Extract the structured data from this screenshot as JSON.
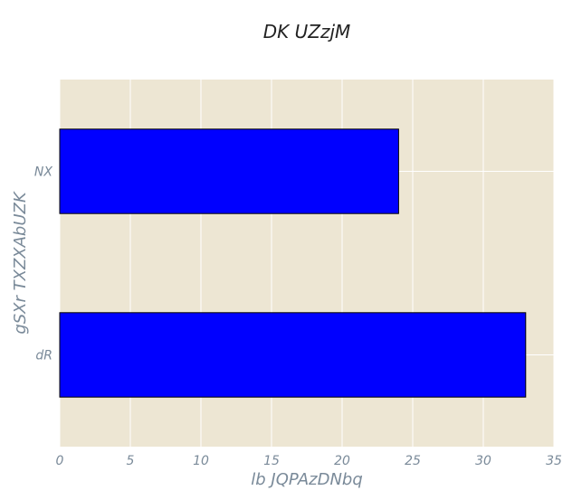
{
  "chart_data": {
    "type": "bar",
    "orientation": "horizontal",
    "title": "DK UZzjM",
    "xlabel": "lb JQPAzDNbq",
    "ylabel": "gSXr TXZXAbUZK",
    "categories": [
      "NX",
      "dR"
    ],
    "values": [
      24,
      33
    ],
    "xlim": [
      0,
      35
    ],
    "x_ticks": [
      0,
      5,
      10,
      15,
      20,
      25,
      30,
      35
    ],
    "grid": true,
    "colors": {
      "bar": "#0000ff",
      "bar_edge": "#000000",
      "plot_background": "#ede6d3",
      "grid": "#ffffff"
    }
  }
}
